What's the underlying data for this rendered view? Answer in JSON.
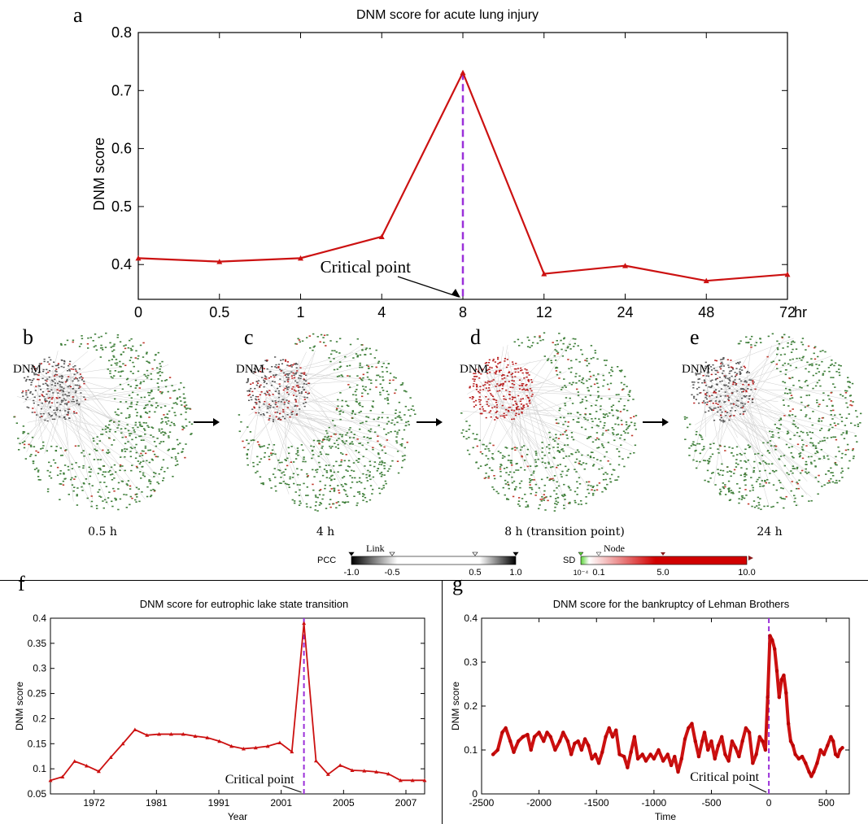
{
  "panels": {
    "a": "a",
    "b": "b",
    "c": "c",
    "d": "d",
    "e": "e",
    "f": "f",
    "g": "g"
  },
  "networks": [
    {
      "id": "b",
      "caption": "0.5 h",
      "dnm_label": "DNM",
      "cluster_intensity": 0.2
    },
    {
      "id": "c",
      "caption": "4 h",
      "dnm_label": "DNM",
      "cluster_intensity": 0.35
    },
    {
      "id": "d",
      "caption": "8 h (transition point)",
      "dnm_label": "DNM",
      "cluster_intensity": 1.0
    },
    {
      "id": "e",
      "caption": "24 h",
      "dnm_label": "DNM",
      "cluster_intensity": 0.25
    }
  ],
  "legend": {
    "link": {
      "title": "Link",
      "prefix": "PCC",
      "ticks": [
        "-1.0",
        "-0.5",
        "0.5",
        "1.0"
      ]
    },
    "node": {
      "title": "Node",
      "prefix": "SD",
      "ticks": [
        "10⁻⁴",
        "0.1",
        "5.0",
        "10.0"
      ]
    },
    "colors": {
      "link_dark": "#000000",
      "node_green": "#5cd43a",
      "node_red": "#d10000"
    }
  },
  "chart_data": [
    {
      "panel": "a",
      "type": "line",
      "title": "DNM score for acute lung injury",
      "xlabel": "",
      "ylabel": "DNM score",
      "categories": [
        "0",
        "0.5",
        "1",
        "4",
        "8",
        "12",
        "24",
        "48",
        "72"
      ],
      "x_unit": "hr",
      "values": [
        0.411,
        0.405,
        0.411,
        0.448,
        0.731,
        0.384,
        0.398,
        0.372,
        0.383
      ],
      "ylim": [
        0.34,
        0.8
      ],
      "yticks": [
        "0.4",
        "0.5",
        "0.6",
        "0.7",
        "0.8"
      ],
      "critical_index": 4,
      "annotation": "Critical point",
      "line_color": "#cc1111",
      "critical_color": "#9b30d9"
    },
    {
      "panel": "f",
      "type": "line",
      "title": "DNM score for eutrophic lake state transition",
      "xlabel": "Year",
      "ylabel": "DNM score",
      "xticks": [
        {
          "label": "1972",
          "pos": 3.5
        },
        {
          "label": "1981",
          "pos": 8.5
        },
        {
          "label": "1991",
          "pos": 13.5
        },
        {
          "label": "2001",
          "pos": 18.5
        },
        {
          "label": "2005",
          "pos": 23.5
        },
        {
          "label": "2007",
          "pos": 28.5
        }
      ],
      "x_range": [
        0,
        30
      ],
      "values": [
        0.077,
        0.084,
        0.115,
        0.106,
        0.095,
        0.123,
        0.15,
        0.178,
        0.167,
        0.169,
        0.169,
        0.169,
        0.165,
        0.162,
        0.155,
        0.145,
        0.14,
        0.142,
        0.145,
        0.152,
        0.134,
        0.39,
        0.116,
        0.089,
        0.107,
        0.097,
        0.096,
        0.094,
        0.09,
        0.077,
        0.077,
        0.077
      ],
      "ylim": [
        0.05,
        0.4
      ],
      "yticks": [
        "0.05",
        "0.1",
        "0.15",
        "0.2",
        "0.25",
        "0.3",
        "0.35",
        "0.4"
      ],
      "critical_index": 21,
      "annotation": "Critical point",
      "line_color": "#cc1111",
      "critical_color": "#9b30d9"
    },
    {
      "panel": "g",
      "type": "line",
      "title": "DNM score for the bankruptcy of Lehman Brothers",
      "xlabel": "Time",
      "ylabel": "DNM score",
      "xlim": [
        -2500,
        700
      ],
      "xticks": [
        "-2500",
        "-2000",
        "-1500",
        "-1000",
        "-500",
        "0",
        "500"
      ],
      "ylim": [
        0,
        0.4
      ],
      "yticks": [
        "0",
        "0.1",
        "0.2",
        "0.3",
        "0.4"
      ],
      "points": [
        [
          -2400,
          0.09
        ],
        [
          -2360,
          0.1
        ],
        [
          -2320,
          0.14
        ],
        [
          -2290,
          0.15
        ],
        [
          -2250,
          0.12
        ],
        [
          -2220,
          0.095
        ],
        [
          -2180,
          0.12
        ],
        [
          -2140,
          0.13
        ],
        [
          -2100,
          0.135
        ],
        [
          -2070,
          0.1
        ],
        [
          -2040,
          0.13
        ],
        [
          -2000,
          0.14
        ],
        [
          -1960,
          0.12
        ],
        [
          -1930,
          0.14
        ],
        [
          -1900,
          0.13
        ],
        [
          -1860,
          0.1
        ],
        [
          -1820,
          0.12
        ],
        [
          -1790,
          0.14
        ],
        [
          -1750,
          0.12
        ],
        [
          -1720,
          0.09
        ],
        [
          -1690,
          0.115
        ],
        [
          -1660,
          0.12
        ],
        [
          -1630,
          0.1
        ],
        [
          -1600,
          0.125
        ],
        [
          -1570,
          0.11
        ],
        [
          -1540,
          0.08
        ],
        [
          -1510,
          0.09
        ],
        [
          -1480,
          0.07
        ],
        [
          -1450,
          0.095
        ],
        [
          -1420,
          0.13
        ],
        [
          -1390,
          0.15
        ],
        [
          -1360,
          0.13
        ],
        [
          -1330,
          0.145
        ],
        [
          -1300,
          0.09
        ],
        [
          -1260,
          0.085
        ],
        [
          -1230,
          0.06
        ],
        [
          -1200,
          0.095
        ],
        [
          -1170,
          0.13
        ],
        [
          -1140,
          0.08
        ],
        [
          -1100,
          0.09
        ],
        [
          -1070,
          0.075
        ],
        [
          -1030,
          0.09
        ],
        [
          -1000,
          0.08
        ],
        [
          -960,
          0.1
        ],
        [
          -920,
          0.075
        ],
        [
          -880,
          0.09
        ],
        [
          -850,
          0.065
        ],
        [
          -820,
          0.085
        ],
        [
          -790,
          0.05
        ],
        [
          -760,
          0.08
        ],
        [
          -730,
          0.125
        ],
        [
          -700,
          0.15
        ],
        [
          -670,
          0.16
        ],
        [
          -640,
          0.12
        ],
        [
          -610,
          0.085
        ],
        [
          -580,
          0.12
        ],
        [
          -560,
          0.14
        ],
        [
          -530,
          0.1
        ],
        [
          -500,
          0.12
        ],
        [
          -470,
          0.08
        ],
        [
          -440,
          0.11
        ],
        [
          -410,
          0.13
        ],
        [
          -380,
          0.09
        ],
        [
          -350,
          0.075
        ],
        [
          -320,
          0.12
        ],
        [
          -290,
          0.105
        ],
        [
          -260,
          0.085
        ],
        [
          -230,
          0.12
        ],
        [
          -200,
          0.15
        ],
        [
          -170,
          0.14
        ],
        [
          -140,
          0.07
        ],
        [
          -110,
          0.09
        ],
        [
          -80,
          0.13
        ],
        [
          -55,
          0.12
        ],
        [
          -30,
          0.1
        ],
        [
          -10,
          0.22
        ],
        [
          10,
          0.36
        ],
        [
          30,
          0.35
        ],
        [
          50,
          0.33
        ],
        [
          70,
          0.28
        ],
        [
          90,
          0.22
        ],
        [
          110,
          0.26
        ],
        [
          130,
          0.27
        ],
        [
          150,
          0.23
        ],
        [
          170,
          0.16
        ],
        [
          190,
          0.12
        ],
        [
          210,
          0.11
        ],
        [
          230,
          0.09
        ],
        [
          260,
          0.08
        ],
        [
          290,
          0.085
        ],
        [
          320,
          0.07
        ],
        [
          350,
          0.05
        ],
        [
          370,
          0.04
        ],
        [
          390,
          0.05
        ],
        [
          420,
          0.07
        ],
        [
          450,
          0.1
        ],
        [
          480,
          0.09
        ],
        [
          510,
          0.11
        ],
        [
          540,
          0.13
        ],
        [
          560,
          0.12
        ],
        [
          580,
          0.09
        ],
        [
          600,
          0.085
        ],
        [
          620,
          0.1
        ],
        [
          640,
          0.105
        ]
      ],
      "critical_x": 0,
      "annotation": "Critical point",
      "line_color": "#cc1111",
      "critical_color": "#9b30d9"
    }
  ]
}
